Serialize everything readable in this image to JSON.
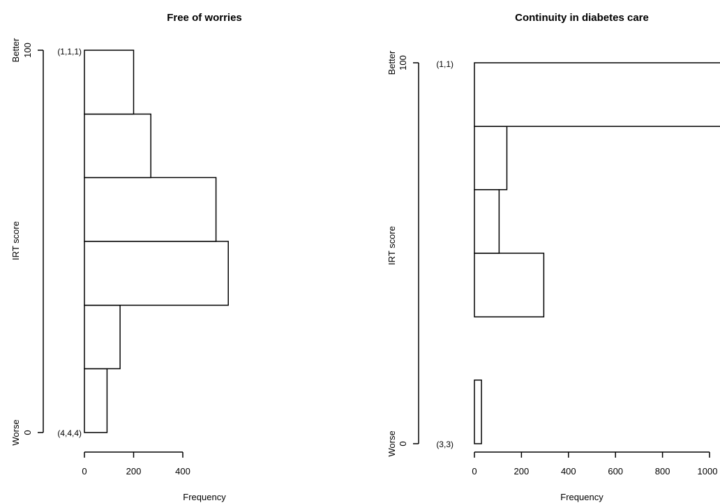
{
  "chart_data": [
    {
      "type": "bar",
      "orientation": "horizontal",
      "title": "Free of worries",
      "xlabel": "Frequency",
      "ylabel": "IRT score",
      "xlim": [
        0,
        400
      ],
      "ylim": [
        0,
        100
      ],
      "x_ticks": [
        "0",
        "200",
        "400"
      ],
      "y_ticks": [
        "0",
        "100"
      ],
      "y_top_label": "Better",
      "y_bottom_label": "Worse",
      "top_pattern": "(1,1,1)",
      "bottom_pattern": "(4,4,4)",
      "bins": [
        {
          "from": 0,
          "to": 16.7,
          "frequency": 92
        },
        {
          "from": 16.7,
          "to": 33.3,
          "frequency": 145
        },
        {
          "from": 33.3,
          "to": 50,
          "frequency": 585
        },
        {
          "from": 50,
          "to": 66.7,
          "frequency": 535
        },
        {
          "from": 66.7,
          "to": 83.3,
          "frequency": 270
        },
        {
          "from": 83.3,
          "to": 100,
          "frequency": 200
        }
      ]
    },
    {
      "type": "bar",
      "orientation": "horizontal",
      "title": "Continuity in diabetes care",
      "xlabel": "Frequency",
      "ylabel": "IRT score",
      "xlim": [
        0,
        1000
      ],
      "ylim": [
        0,
        100
      ],
      "x_ticks": [
        "0",
        "200",
        "400",
        "600",
        "800",
        "1000"
      ],
      "y_ticks": [
        "0",
        "100"
      ],
      "y_top_label": "Better",
      "y_bottom_label": "Worse",
      "top_pattern": "(1,1)",
      "bottom_pattern": "(3,3)",
      "bins": [
        {
          "from": 0,
          "to": 16.7,
          "frequency": 30
        },
        {
          "from": 16.7,
          "to": 33.3,
          "frequency": 0
        },
        {
          "from": 33.3,
          "to": 50,
          "frequency": 295
        },
        {
          "from": 50,
          "to": 66.7,
          "frequency": 105
        },
        {
          "from": 66.7,
          "to": 83.3,
          "frequency": 138
        },
        {
          "from": 83.3,
          "to": 100,
          "frequency": 1050
        }
      ]
    }
  ]
}
